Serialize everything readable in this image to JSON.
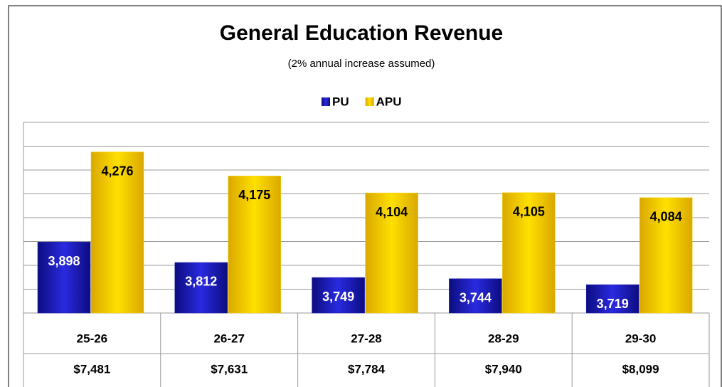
{
  "chart_data": {
    "type": "bar",
    "title": "General Education Revenue",
    "subtitle": "(2% annual  increase assumed)",
    "categories": [
      "25-26",
      "26-27",
      "27-28",
      "28-29",
      "29-30"
    ],
    "series": [
      {
        "name": "PU",
        "color": "#1c1cb4",
        "values": [
          3898,
          3812,
          3749,
          3744,
          3719
        ],
        "value_labels": [
          "3,898",
          "3,812",
          "3,749",
          "3,744",
          "3,719"
        ]
      },
      {
        "name": "APU",
        "color": "#f5d000",
        "values": [
          4276,
          4175,
          4104,
          4105,
          4084
        ],
        "value_labels": [
          "4,276",
          "4,175",
          "4,104",
          "4,105",
          "4,084"
        ]
      }
    ],
    "totals": [
      "$7,481",
      "$7,631",
      "$7,784",
      "$7,940",
      "$8,099"
    ],
    "ylim": [
      3600,
      4400
    ],
    "yticks": [
      3600,
      3700,
      3800,
      3900,
      4000,
      4100,
      4200,
      4300,
      4400
    ],
    "grid": true,
    "legend": "top"
  }
}
